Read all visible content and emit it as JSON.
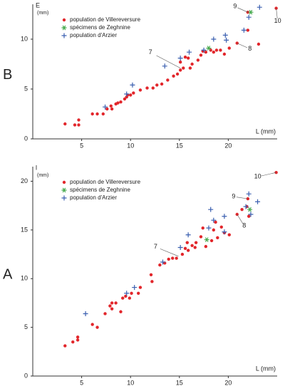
{
  "chart_data": [
    {
      "type": "scatter",
      "panel": "B",
      "ylabel": "E",
      "yunit": "(mm)",
      "xlabel": "L (mm)",
      "xlim": [
        0,
        25
      ],
      "ylim": [
        0,
        13.5
      ],
      "xticks": [
        5,
        10,
        15,
        20
      ],
      "yticks": [
        0,
        5,
        10
      ],
      "legend": "top-left",
      "series": [
        {
          "name": "population de Villereversure",
          "color": "#e2262b",
          "marker": "dot",
          "x": [
            3.3,
            4.3,
            4.7,
            4.7,
            6.1,
            6.6,
            7.2,
            7.6,
            8.0,
            8.1,
            8.5,
            8.7,
            9.0,
            9.4,
            9.6,
            9.7,
            10.0,
            10.3,
            11.0,
            11.7,
            12.3,
            12.7,
            13.2,
            13.8,
            14.4,
            14.8,
            15.1,
            15.4,
            15.1,
            15.6,
            15.9,
            16.1,
            16.3,
            16.9,
            17.2,
            17.4,
            17.7,
            18.2,
            18.5,
            18.8,
            19.2,
            19.6,
            20.1,
            20.9,
            22.0,
            22.0,
            23.1,
            24.9
          ],
          "values": [
            1.5,
            1.4,
            1.9,
            1.4,
            2.5,
            2.5,
            2.5,
            3.0,
            3.3,
            3.0,
            3.5,
            3.6,
            3.7,
            4.0,
            4.2,
            4.4,
            4.4,
            4.6,
            4.9,
            5.1,
            5.1,
            5.4,
            5.5,
            5.9,
            6.3,
            6.5,
            6.9,
            7.1,
            7.7,
            8.2,
            8.1,
            7.1,
            7.5,
            7.9,
            8.4,
            8.8,
            8.7,
            8.9,
            8.7,
            8.9,
            8.9,
            8.5,
            9.1,
            9.6,
            10.9,
            12.7,
            9.5,
            13.1
          ]
        },
        {
          "name": "spécimens de Zeghnine",
          "color": "#43a84a",
          "marker": "asterisk",
          "x": [
            18.0,
            22.3
          ],
          "values": [
            9.1,
            12.7
          ]
        },
        {
          "name": "population d'Arzier",
          "color": "#3a5fb0",
          "marker": "plus",
          "x": [
            7.4,
            9.6,
            10.2,
            13.5,
            15.1,
            16.0,
            17.5,
            18.5,
            19.7,
            19.8,
            21.6,
            22.1,
            23.2
          ],
          "values": [
            3.2,
            4.5,
            5.4,
            7.3,
            8.1,
            8.7,
            8.9,
            10.0,
            10.4,
            9.9,
            10.9,
            12.2,
            13.2
          ]
        }
      ],
      "annotations": [
        {
          "text": "9",
          "x": 22.0,
          "y": 12.7
        },
        {
          "text": "10",
          "x": 24.9,
          "y": 13.1
        },
        {
          "text": "8",
          "x": 20.9,
          "y": 9.6
        },
        {
          "text": "7",
          "x": 15.1,
          "y": 7.1
        }
      ]
    },
    {
      "type": "scatter",
      "panel": "A",
      "ylabel": "l",
      "yunit": "(mm)",
      "xlabel": "L (mm)",
      "xlim": [
        0,
        25
      ],
      "ylim": [
        0,
        21.5
      ],
      "xticks": [
        5,
        10,
        15,
        20
      ],
      "yticks": [
        0,
        5,
        10,
        15,
        20
      ],
      "legend": "top-left",
      "series": [
        {
          "name": "population de Villereversure",
          "color": "#e2262b",
          "marker": "dot",
          "x": [
            3.3,
            4.1,
            4.6,
            4.6,
            6.1,
            6.6,
            7.4,
            7.9,
            8.1,
            8.1,
            8.5,
            9.0,
            9.2,
            9.5,
            9.9,
            10.1,
            10.8,
            11.0,
            12.1,
            12.2,
            13.0,
            13.5,
            13.9,
            14.3,
            14.7,
            15.3,
            15.6,
            15.8,
            15.9,
            16.3,
            16.6,
            16.7,
            17.2,
            17.4,
            17.7,
            18.3,
            18.5,
            18.7,
            18.9,
            19.3,
            19.6,
            20.1,
            20.9,
            21.4,
            21.9,
            22.0,
            22.1,
            24.9
          ],
          "values": [
            3.1,
            3.5,
            3.7,
            4.0,
            5.3,
            5.0,
            6.4,
            7.2,
            7.5,
            6.9,
            7.5,
            6.6,
            8.0,
            8.2,
            8.0,
            8.5,
            8.5,
            9.1,
            10.4,
            9.7,
            11.4,
            11.6,
            12.0,
            12.1,
            12.1,
            12.5,
            13.1,
            13.7,
            12.9,
            13.4,
            13.2,
            13.7,
            14.3,
            15.2,
            13.3,
            13.9,
            15.0,
            15.8,
            14.2,
            15.3,
            14.7,
            14.5,
            16.6,
            17.1,
            17.4,
            18.2,
            16.4,
            20.9
          ]
        },
        {
          "name": "spécimens de Zeghnine",
          "color": "#43a84a",
          "marker": "asterisk",
          "x": [
            17.8,
            22.2
          ],
          "values": [
            14.0,
            17.1
          ]
        },
        {
          "name": "population d'Arzier",
          "color": "#3a5fb0",
          "marker": "plus",
          "x": [
            5.4,
            9.6,
            10.4,
            13.3,
            15.1,
            15.9,
            18.0,
            18.2,
            18.5,
            19.6,
            19.6,
            21.8,
            22.1,
            22.3,
            23.0
          ],
          "values": [
            6.4,
            8.5,
            9.1,
            11.7,
            13.2,
            14.5,
            15.2,
            17.1,
            16.0,
            16.4,
            14.8,
            17.4,
            18.7,
            16.6,
            17.9
          ]
        }
      ],
      "annotations": [
        {
          "text": "7",
          "x": 14.9,
          "y": 12.3
        },
        {
          "text": "9",
          "x": 22.0,
          "y": 18.2
        },
        {
          "text": "8",
          "x": 20.9,
          "y": 16.6
        },
        {
          "text": "10",
          "x": 24.9,
          "y": 20.9
        }
      ]
    }
  ]
}
